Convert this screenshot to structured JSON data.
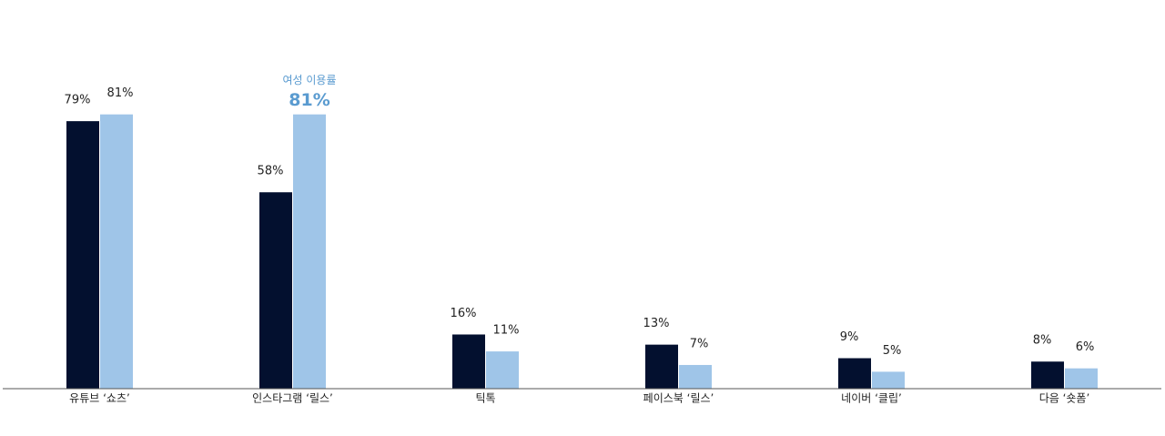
{
  "chart_data": {
    "type": "bar",
    "categories": [
      "유튜브 ‘쇼츠’",
      "인스타그램 ‘릴스’",
      "틱톡",
      "페이스북 ‘릴스’",
      "네이버 ‘클립’",
      "다음 ‘숏폼’"
    ],
    "series": [
      {
        "color": "#03102f",
        "values": [
          79,
          58,
          16,
          13,
          9,
          8
        ],
        "value_labels": [
          "79%",
          "58%",
          "16%",
          "13%",
          "9%",
          "8%"
        ]
      },
      {
        "color": "#9fc5e8",
        "values": [
          81,
          81,
          11,
          7,
          5,
          6
        ],
        "value_labels": [
          "81%",
          "81%",
          "11%",
          "7%",
          "5%",
          "6%"
        ]
      }
    ],
    "ylim": [
      0,
      100
    ],
    "highlight": {
      "series": 1,
      "index": 1,
      "annotation": "여성 이용률",
      "color": "#5a9bd0"
    }
  }
}
